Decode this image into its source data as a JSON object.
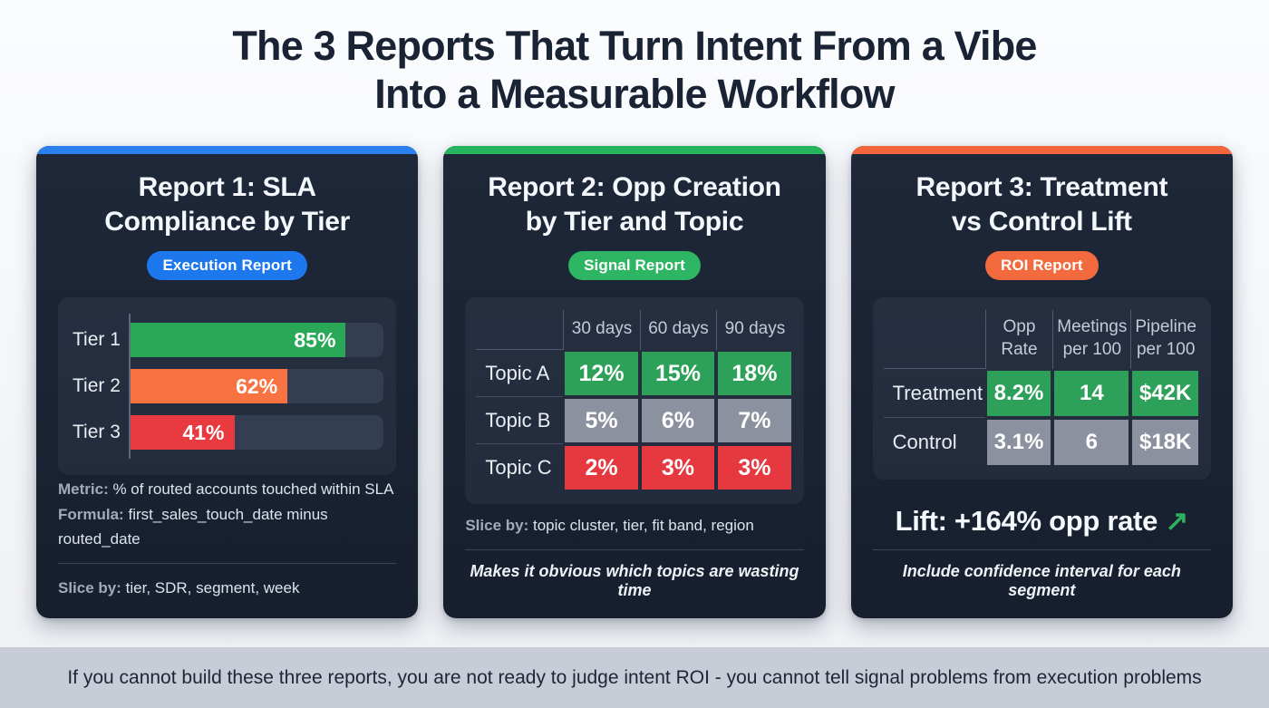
{
  "page": {
    "title_line1": "The 3 Reports That Turn Intent From a Vibe",
    "title_line2": "Into a Measurable Workflow",
    "footer": "If you cannot build these three reports, you are not ready to judge intent ROI - you cannot tell signal problems from execution problems"
  },
  "colors": {
    "accent_blue": "#2b80f0",
    "accent_green": "#25b35e",
    "accent_orange": "#f3653a",
    "badge_blue": "#1d78ee",
    "badge_green": "#2eb563",
    "badge_orange": "#f26a3d",
    "bar_green": "#29a957",
    "bar_orange": "#f97342",
    "bar_red": "#e83a3f",
    "cell_green": "#2da159",
    "cell_gray": "#8b919e",
    "cell_red": "#e6393f",
    "card_bg": "#1a2332",
    "footer_bg": "#c7ccd7",
    "lift_arrow_green": "#2eb05e"
  },
  "cards": [
    {
      "title_line1": "Report 1: SLA",
      "title_line2": "Compliance by Tier",
      "badge": "Execution Report",
      "bars": [
        {
          "label": "Tier 1",
          "value": 85,
          "display": "85%"
        },
        {
          "label": "Tier 2",
          "value": 62,
          "display": "62%"
        },
        {
          "label": "Tier 3",
          "value": 41,
          "display": "41%"
        }
      ],
      "metric_label": "Metric:",
      "metric_value": "% of routed accounts touched within SLA",
      "formula_label": "Formula:",
      "formula_value": "first_sales_touch_date minus routed_date",
      "slice_label": "Slice by:",
      "slice_value": "tier, SDR, segment, week"
    },
    {
      "title_line1": "Report 2: Opp Creation",
      "title_line2": "by Tier and Topic",
      "badge": "Signal Report",
      "columns": [
        "30 days",
        "60 days",
        "90 days"
      ],
      "rows": [
        {
          "label": "Topic A",
          "values": [
            "12%",
            "15%",
            "18%"
          ]
        },
        {
          "label": "Topic B",
          "values": [
            "5%",
            "6%",
            "7%"
          ]
        },
        {
          "label": "Topic C",
          "values": [
            "2%",
            "3%",
            "3%"
          ]
        }
      ],
      "slice_label": "Slice by:",
      "slice_value": "topic cluster, tier, fit band, region",
      "note": "Makes it obvious which topics are wasting time"
    },
    {
      "title_line1": "Report 3: Treatment",
      "title_line2": "vs Control Lift",
      "badge": "ROI Report",
      "columns": [
        "Opp Rate",
        "Meetings per 100",
        "Pipeline per 100"
      ],
      "rows": [
        {
          "label": "Treatment",
          "values": [
            "8.2%",
            "14",
            "$42K"
          ]
        },
        {
          "label": "Control",
          "values": [
            "3.1%",
            "6",
            "$18K"
          ]
        }
      ],
      "lift_text": "Lift: +164% opp rate",
      "lift_arrow": "↗",
      "note": "Include confidence interval for each segment"
    }
  ],
  "chart_data": [
    {
      "type": "bar",
      "title": "Report 1: SLA Compliance by Tier",
      "orientation": "horizontal",
      "categories": [
        "Tier 1",
        "Tier 2",
        "Tier 3"
      ],
      "values": [
        85,
        62,
        41
      ],
      "value_labels": [
        "85%",
        "62%",
        "41%"
      ],
      "bar_colors": [
        "#29a957",
        "#f97342",
        "#e83a3f"
      ],
      "xlabel": "",
      "ylabel": "",
      "xlim": [
        0,
        100
      ],
      "grid": false,
      "legend": false
    },
    {
      "type": "table",
      "title": "Report 2: Opp Creation by Tier and Topic",
      "columns": [
        "",
        "30 days",
        "60 days",
        "90 days"
      ],
      "rows": [
        [
          "Topic A",
          "12%",
          "15%",
          "18%"
        ],
        [
          "Topic B",
          "5%",
          "6%",
          "7%"
        ],
        [
          "Topic C",
          "2%",
          "3%",
          "3%"
        ]
      ],
      "row_colors": [
        "#2da159",
        "#8b919e",
        "#e6393f"
      ]
    },
    {
      "type": "table",
      "title": "Report 3: Treatment vs Control Lift",
      "columns": [
        "",
        "Opp Rate",
        "Meetings per 100",
        "Pipeline per 100"
      ],
      "rows": [
        [
          "Treatment",
          "8.2%",
          "14",
          "$42K"
        ],
        [
          "Control",
          "3.1%",
          "6",
          "$18K"
        ]
      ],
      "row_colors": [
        "#2da159",
        "#8b919e"
      ],
      "annotation": "Lift: +164% opp rate"
    }
  ]
}
